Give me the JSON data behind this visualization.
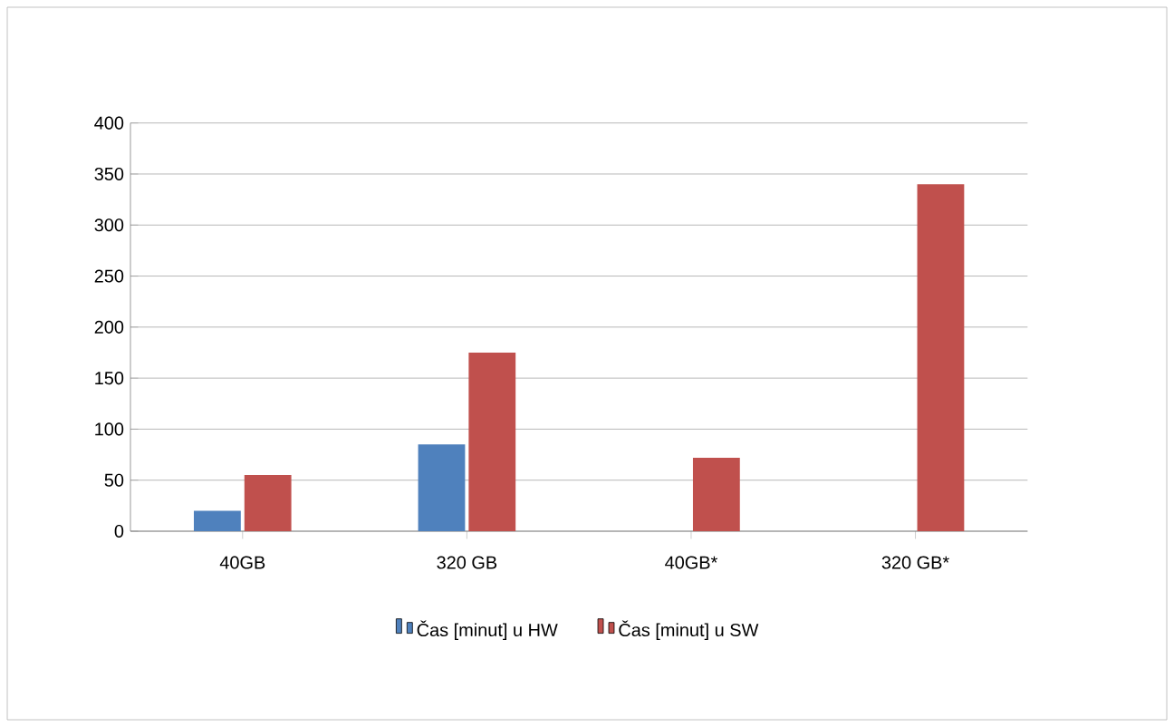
{
  "chart_data": {
    "type": "bar",
    "categories": [
      "40GB",
      "320 GB",
      "40GB*",
      "320 GB*"
    ],
    "series": [
      {
        "name": "Čas [minut] u HW",
        "color": "#4f81bd",
        "values": [
          20,
          85,
          null,
          null
        ]
      },
      {
        "name": "Čas [minut] u SW",
        "color": "#c0504d",
        "values": [
          55,
          175,
          72,
          340
        ]
      }
    ],
    "ylim": [
      0,
      400
    ],
    "yticks": [
      0,
      50,
      100,
      150,
      200,
      250,
      300,
      350,
      400
    ],
    "grid": "y",
    "legend": "bottom"
  }
}
